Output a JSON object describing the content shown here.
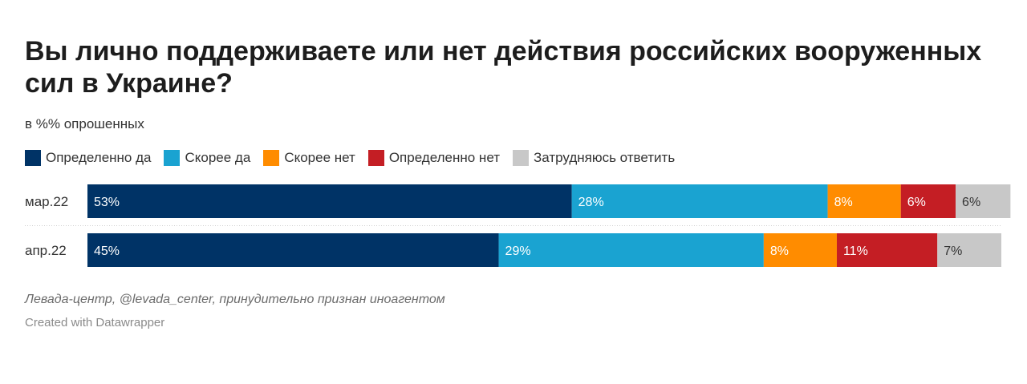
{
  "title": "Вы лично поддерживаете или нет действия российских вооруженных сил в Украине?",
  "subtitle": "в %% опрошенных",
  "colors": {
    "definitely_yes": "#003366",
    "rather_yes": "#1aa3d1",
    "rather_no": "#ff8c00",
    "definitely_no": "#c41e24",
    "hard_to_say": "#c8c8c8"
  },
  "chart_data": {
    "type": "bar",
    "orientation": "horizontal",
    "stacked": true,
    "categories": [
      "мар.22",
      "апр.22"
    ],
    "series": [
      {
        "name": "Определенно да",
        "color": "#003366",
        "label_color": "#ffffff",
        "values": [
          53,
          45
        ]
      },
      {
        "name": "Скорее да",
        "color": "#1aa3d1",
        "label_color": "#ffffff",
        "values": [
          28,
          29
        ]
      },
      {
        "name": "Скорее нет",
        "color": "#ff8c00",
        "label_color": "#ffffff",
        "values": [
          8,
          8
        ]
      },
      {
        "name": "Определенно нет",
        "color": "#c41e24",
        "label_color": "#ffffff",
        "values": [
          6,
          11
        ]
      },
      {
        "name": "Затрудняюсь ответить",
        "color": "#c8c8c8",
        "label_color": "#333333",
        "values": [
          6,
          7
        ]
      }
    ],
    "value_suffix": "%",
    "xlim": [
      0,
      100
    ],
    "legend": "top-left"
  },
  "footer": {
    "source": "Левада-центр, @levada_center, принудительно признан иноагентом",
    "credit": "Created with Datawrapper"
  }
}
